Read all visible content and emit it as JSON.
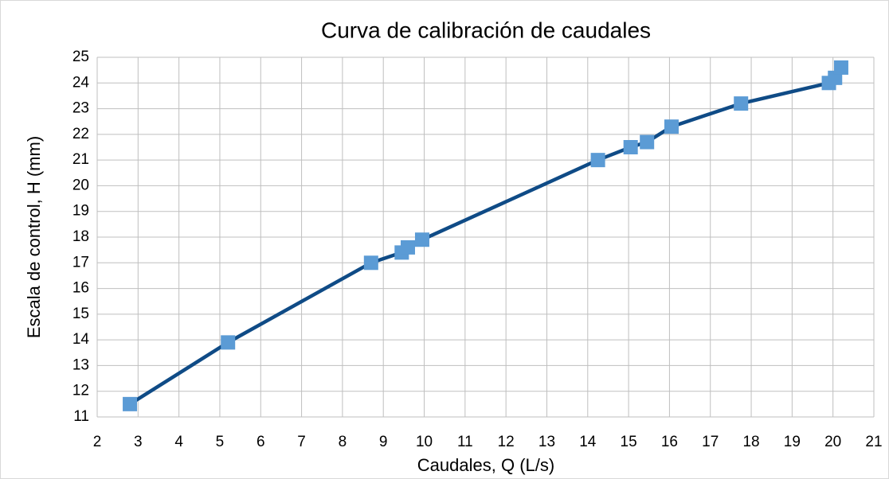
{
  "chart_data": {
    "type": "scatter",
    "title": "Curva de calibración de caudales",
    "xlabel": "Caudales, Q (L/s)",
    "ylabel": "Escala de control,  H (mm)",
    "series": [
      {
        "name": "H",
        "color": "#5b9bd5",
        "line_color": "#0f4b86",
        "x": [
          2.8,
          5.2,
          8.7,
          9.45,
          9.6,
          9.95,
          14.25,
          15.05,
          15.45,
          16.05,
          17.75,
          19.9,
          20.05,
          20.2
        ],
        "values": [
          11.5,
          13.9,
          17.0,
          17.4,
          17.6,
          17.9,
          21.0,
          21.5,
          21.7,
          22.3,
          23.2,
          24.0,
          24.2,
          24.6
        ]
      }
    ],
    "xlim": [
      2,
      21
    ],
    "xticks": [
      2,
      3,
      4,
      5,
      6,
      7,
      8,
      9,
      10,
      11,
      12,
      13,
      14,
      15,
      16,
      17,
      18,
      19,
      20,
      21
    ],
    "ylim": [
      11,
      25
    ],
    "yticks": [
      11,
      12,
      13,
      14,
      15,
      16,
      17,
      18,
      19,
      20,
      21,
      22,
      23,
      24,
      25
    ],
    "grid": true
  }
}
